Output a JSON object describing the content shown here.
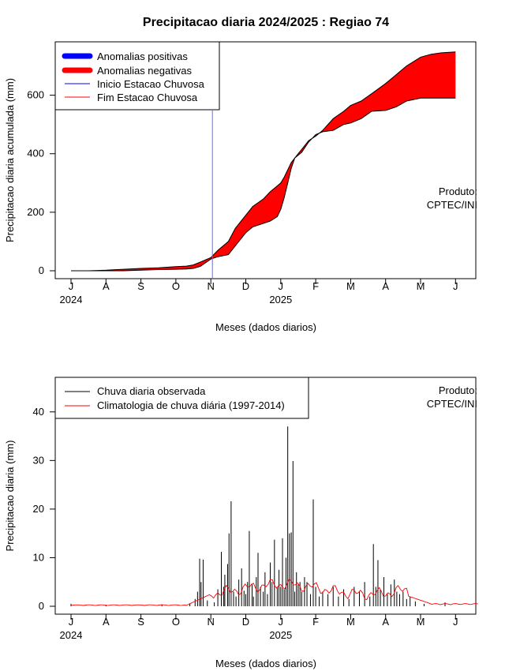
{
  "title": "Precipitacao diaria 2024/2025 : Regiao 74",
  "chart_data": [
    {
      "type": "area",
      "ylabel": "Precipitacao diaria acumulada (mm)",
      "xlabel": "Meses (dados diarios)",
      "x_ticks": [
        "J",
        "A",
        "S",
        "O",
        "N",
        "D",
        "J",
        "F",
        "M",
        "A",
        "M",
        "J"
      ],
      "year_labels": [
        "2024",
        "2025"
      ],
      "ylim": [
        0,
        750
      ],
      "y_ticks": [
        0,
        200,
        400,
        600
      ],
      "credit": [
        "Produto:",
        "CPTEC/INI"
      ],
      "legend": {
        "position": "top-left",
        "items": [
          {
            "label": "Anomalias positivas",
            "color": "#0000ff",
            "style": "thick"
          },
          {
            "label": "Anomalias negativas",
            "color": "#ff0000",
            "style": "thick"
          },
          {
            "label": "Inicio Estacao Chuvosa",
            "color": "#0000ff",
            "style": "thin"
          },
          {
            "label": "Fim Estacao Chuvosa",
            "color": "#ff0000",
            "style": "thin"
          }
        ]
      },
      "rainy_season_start_month": 4,
      "x_month_index": [
        0,
        0.5,
        1,
        1.5,
        2,
        2.5,
        3,
        3.3,
        3.5,
        3.7,
        4,
        4.2,
        4.5,
        4.7,
        5,
        5.2,
        5.5,
        5.7,
        5.9,
        6,
        6.1,
        6.2,
        6.3,
        6.4,
        6.5,
        6.6,
        6.8,
        7,
        7.2,
        7.5,
        7.8,
        8,
        8.3,
        8.6,
        9,
        9.3,
        9.6,
        10,
        10.3,
        10.6,
        11
      ],
      "observed": [
        0,
        0,
        0,
        0,
        2,
        4,
        5,
        6,
        8,
        15,
        40,
        48,
        55,
        85,
        130,
        150,
        162,
        170,
        185,
        210,
        250,
        300,
        350,
        385,
        395,
        405,
        440,
        465,
        475,
        480,
        500,
        505,
        520,
        545,
        548,
        560,
        580,
        590,
        590,
        590,
        590
      ],
      "climatology": [
        0,
        0,
        2,
        5,
        8,
        10,
        14,
        16,
        20,
        30,
        45,
        70,
        100,
        145,
        190,
        220,
        245,
        270,
        290,
        300,
        320,
        345,
        370,
        385,
        400,
        415,
        445,
        460,
        480,
        520,
        545,
        565,
        580,
        605,
        640,
        670,
        700,
        730,
        740,
        745,
        748
      ],
      "legend_colors": {
        "positive": "#0000ff",
        "negative": "#ff0000"
      }
    },
    {
      "type": "bar",
      "ylabel": "Precipitacao diaria (mm)",
      "xlabel": "Meses (dados diarios)",
      "x_ticks": [
        "J",
        "A",
        "S",
        "O",
        "N",
        "D",
        "J",
        "F",
        "M",
        "A",
        "M",
        "J"
      ],
      "year_labels": [
        "2024",
        "2025"
      ],
      "ylim": [
        0,
        45
      ],
      "y_ticks": [
        0,
        10,
        20,
        30,
        40
      ],
      "credit": [
        "Produto:",
        "CPTEC/INI"
      ],
      "legend": {
        "position": "top-left",
        "items": [
          {
            "label": "Chuva diaria observada",
            "color": "#000000"
          },
          {
            "label": "Climatologia de chuva diária (1997-2014)",
            "color": "#ff0000"
          }
        ]
      },
      "observed_spikes": [
        {
          "m": 0.0,
          "v": 0.5
        },
        {
          "m": 1.0,
          "v": 0.3
        },
        {
          "m": 2.6,
          "v": 0.4
        },
        {
          "m": 3.4,
          "v": 0.6
        },
        {
          "m": 3.55,
          "v": 1.5
        },
        {
          "m": 3.62,
          "v": 3.0
        },
        {
          "m": 3.68,
          "v": 9.8
        },
        {
          "m": 3.72,
          "v": 5.0
        },
        {
          "m": 3.78,
          "v": 9.6
        },
        {
          "m": 3.9,
          "v": 1.2
        },
        {
          "m": 4.1,
          "v": 0.8
        },
        {
          "m": 4.2,
          "v": 3.5
        },
        {
          "m": 4.3,
          "v": 11.2
        },
        {
          "m": 4.37,
          "v": 4.0
        },
        {
          "m": 4.4,
          "v": 6.5
        },
        {
          "m": 4.48,
          "v": 8.7
        },
        {
          "m": 4.52,
          "v": 15.0
        },
        {
          "m": 4.58,
          "v": 21.6
        },
        {
          "m": 4.65,
          "v": 3.0
        },
        {
          "m": 4.72,
          "v": 2.0
        },
        {
          "m": 4.8,
          "v": 5.5
        },
        {
          "m": 4.88,
          "v": 7.8
        },
        {
          "m": 4.95,
          "v": 3.2
        },
        {
          "m": 5.0,
          "v": 2.5
        },
        {
          "m": 5.05,
          "v": 5.0
        },
        {
          "m": 5.1,
          "v": 15.5
        },
        {
          "m": 5.18,
          "v": 4.5
        },
        {
          "m": 5.22,
          "v": 2.0
        },
        {
          "m": 5.3,
          "v": 6.0
        },
        {
          "m": 5.35,
          "v": 11.0
        },
        {
          "m": 5.42,
          "v": 4.0
        },
        {
          "m": 5.5,
          "v": 3.0
        },
        {
          "m": 5.55,
          "v": 7.0
        },
        {
          "m": 5.62,
          "v": 2.5
        },
        {
          "m": 5.7,
          "v": 9.0
        },
        {
          "m": 5.75,
          "v": 5.0
        },
        {
          "m": 5.82,
          "v": 13.7
        },
        {
          "m": 5.9,
          "v": 4.0
        },
        {
          "m": 5.95,
          "v": 7.5
        },
        {
          "m": 6.0,
          "v": 4.0
        },
        {
          "m": 6.05,
          "v": 14.0
        },
        {
          "m": 6.1,
          "v": 3.5
        },
        {
          "m": 6.15,
          "v": 10.0
        },
        {
          "m": 6.2,
          "v": 37.0
        },
        {
          "m": 6.25,
          "v": 15.0
        },
        {
          "m": 6.3,
          "v": 15.2
        },
        {
          "m": 6.35,
          "v": 29.9
        },
        {
          "m": 6.4,
          "v": 3.0
        },
        {
          "m": 6.45,
          "v": 7.0
        },
        {
          "m": 6.5,
          "v": 4.5
        },
        {
          "m": 6.55,
          "v": 5.0
        },
        {
          "m": 6.6,
          "v": 3.0
        },
        {
          "m": 6.68,
          "v": 6.0
        },
        {
          "m": 6.75,
          "v": 5.0
        },
        {
          "m": 6.85,
          "v": 2.5
        },
        {
          "m": 6.93,
          "v": 22.0
        },
        {
          "m": 7.0,
          "v": 4.0
        },
        {
          "m": 7.1,
          "v": 2.0
        },
        {
          "m": 7.2,
          "v": 3.0
        },
        {
          "m": 7.35,
          "v": 2.5
        },
        {
          "m": 7.5,
          "v": 4.0
        },
        {
          "m": 7.65,
          "v": 2.0
        },
        {
          "m": 7.8,
          "v": 3.5
        },
        {
          "m": 7.95,
          "v": 1.5
        },
        {
          "m": 8.1,
          "v": 4.0
        },
        {
          "m": 8.25,
          "v": 3.0
        },
        {
          "m": 8.4,
          "v": 5.0
        },
        {
          "m": 8.55,
          "v": 2.0
        },
        {
          "m": 8.65,
          "v": 12.8
        },
        {
          "m": 8.72,
          "v": 4.0
        },
        {
          "m": 8.78,
          "v": 9.5
        },
        {
          "m": 8.85,
          "v": 3.5
        },
        {
          "m": 8.95,
          "v": 6.0
        },
        {
          "m": 9.05,
          "v": 2.5
        },
        {
          "m": 9.15,
          "v": 4.5
        },
        {
          "m": 9.25,
          "v": 5.5
        },
        {
          "m": 9.32,
          "v": 3.0
        },
        {
          "m": 9.4,
          "v": 2.5
        },
        {
          "m": 9.5,
          "v": 3.0
        },
        {
          "m": 9.6,
          "v": 1.5
        },
        {
          "m": 9.7,
          "v": 2.0
        },
        {
          "m": 9.85,
          "v": 1.0
        },
        {
          "m": 10.1,
          "v": 0.5
        },
        {
          "m": 10.7,
          "v": 0.8
        }
      ]
    }
  ]
}
